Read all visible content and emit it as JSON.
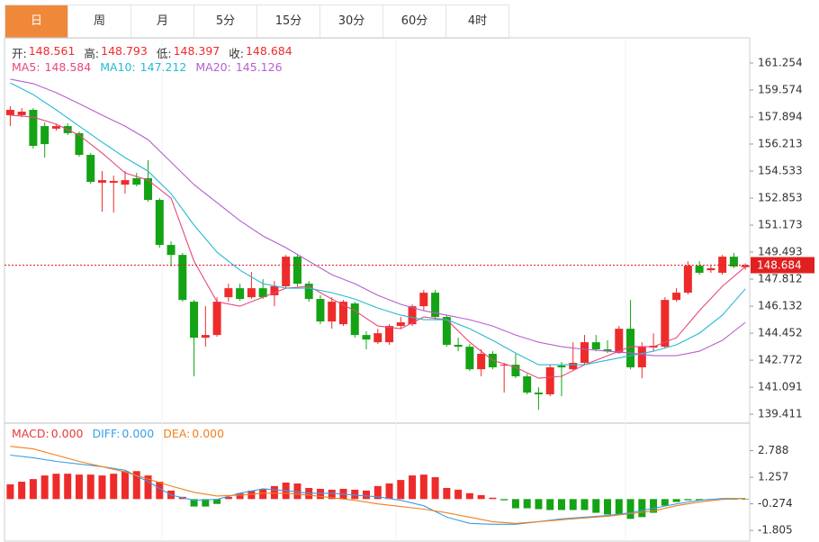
{
  "tabs": {
    "items": [
      "日",
      "周",
      "月",
      "5分",
      "15分",
      "30分",
      "60分",
      "4时"
    ],
    "active": 0,
    "active_color": "#f0883a"
  },
  "chart_data": [
    {
      "type": "candlestick",
      "up_color": "#ee2b2b",
      "down_color": "#14a314",
      "price_line_color": "#e02020",
      "ylim": [
        138.97,
        162.82
      ],
      "yticks": [
        161.254,
        159.574,
        157.894,
        156.213,
        154.533,
        152.853,
        151.173,
        149.493,
        147.812,
        146.132,
        144.452,
        142.772,
        141.091,
        139.411
      ],
      "ohlc_legend": [
        {
          "label": "开:",
          "value": 148.561
        },
        {
          "label": "高:",
          "value": 148.793
        },
        {
          "label": "低:",
          "value": 148.397
        },
        {
          "label": "收:",
          "value": 148.684
        }
      ],
      "open": [
        158.01,
        158.01,
        158.34,
        157.33,
        157.17,
        157.33,
        156.89,
        155.54,
        153.81,
        153.81,
        153.69,
        154.09,
        154.09,
        152.74,
        149.94,
        149.32,
        146.41,
        144.17,
        144.34,
        146.69,
        147.25,
        146.69,
        147.25,
        146.81,
        147.37,
        149.21,
        147.53,
        146.58,
        145.18,
        145.01,
        146.3,
        144.34,
        143.89,
        143.89,
        144.9,
        145.01,
        146.13,
        146.97,
        145.46,
        143.73,
        143.61,
        142.21,
        143.17,
        142.44,
        142.49,
        141.77,
        140.76,
        140.65,
        142.44,
        142.21,
        142.61,
        143.89,
        143.45,
        143.22,
        144.73,
        142.33,
        143.56,
        143.61,
        146.52,
        146.97,
        148.65,
        148.37,
        148.21,
        149.21,
        148.561
      ],
      "high": [
        158.57,
        158.45,
        158.45,
        157.56,
        157.45,
        157.5,
        157.0,
        155.65,
        154.53,
        154.25,
        154.53,
        154.42,
        155.21,
        152.85,
        150.17,
        149.44,
        146.52,
        146.13,
        146.69,
        147.53,
        147.53,
        148.26,
        147.81,
        147.7,
        149.32,
        149.32,
        147.7,
        146.81,
        146.69,
        146.52,
        146.41,
        144.57,
        144.73,
        145.01,
        145.46,
        146.25,
        147.14,
        147.14,
        145.57,
        144.17,
        143.78,
        143.45,
        143.33,
        142.61,
        143.17,
        141.93,
        141.09,
        142.49,
        142.66,
        143.89,
        144.34,
        144.34,
        144.01,
        144.9,
        146.52,
        143.89,
        144.45,
        146.69,
        147.25,
        148.93,
        148.93,
        148.65,
        149.32,
        149.44,
        148.793
      ],
      "low": [
        157.33,
        157.89,
        155.93,
        155.37,
        157.05,
        156.77,
        155.43,
        153.75,
        152.01,
        151.96,
        153.13,
        153.58,
        152.63,
        149.77,
        148.6,
        146.41,
        141.77,
        143.61,
        144.23,
        146.41,
        146.47,
        146.58,
        146.58,
        146.13,
        147.25,
        147.37,
        146.41,
        145.01,
        144.73,
        144.9,
        144.17,
        143.45,
        143.78,
        143.73,
        144.73,
        144.9,
        145.85,
        145.29,
        143.61,
        143.33,
        142.1,
        141.77,
        142.21,
        140.76,
        141.65,
        140.65,
        139.69,
        140.53,
        140.53,
        142.1,
        142.49,
        143.33,
        143.22,
        143.17,
        142.21,
        141.65,
        143.33,
        143.5,
        146.41,
        146.86,
        148.09,
        148.21,
        148.09,
        148.49,
        148.397
      ],
      "close": [
        158.34,
        158.23,
        156.1,
        156.21,
        157.33,
        156.89,
        155.54,
        153.86,
        153.97,
        153.92,
        153.97,
        153.69,
        152.74,
        149.94,
        149.32,
        146.52,
        144.17,
        144.34,
        146.41,
        147.25,
        146.58,
        147.25,
        146.69,
        147.37,
        149.21,
        147.53,
        146.58,
        145.18,
        146.41,
        146.41,
        144.34,
        144.06,
        144.45,
        144.9,
        145.13,
        146.13,
        146.97,
        145.46,
        143.73,
        143.61,
        142.21,
        143.17,
        142.33,
        142.49,
        141.77,
        140.76,
        140.65,
        142.33,
        142.33,
        142.61,
        143.89,
        143.45,
        143.33,
        144.73,
        142.33,
        143.61,
        143.67,
        146.52,
        146.97,
        148.65,
        148.21,
        148.49,
        149.21,
        148.6,
        148.684
      ],
      "series": [
        {
          "name": "MA5:",
          "color": "#e8477a",
          "last_value": 148.584,
          "x": [
            0,
            2,
            4,
            6,
            8,
            10,
            12,
            14,
            16,
            18,
            20,
            22,
            24,
            26,
            28,
            30,
            32,
            34,
            36,
            38,
            40,
            42,
            44,
            46,
            48,
            50,
            52,
            54,
            56,
            58,
            60,
            62,
            64
          ],
          "values": [
            158.01,
            157.89,
            157.45,
            156.77,
            155.65,
            154.42,
            153.97,
            152.85,
            148.93,
            146.41,
            146.13,
            146.69,
            147.25,
            147.37,
            146.58,
            145.85,
            144.9,
            144.73,
            145.46,
            145.29,
            143.89,
            142.77,
            142.33,
            141.65,
            141.77,
            142.49,
            143.05,
            143.61,
            143.61,
            144.17,
            145.85,
            147.37,
            148.584
          ]
        },
        {
          "name": "MA10:",
          "color": "#27b9d4",
          "last_value": 147.212,
          "x": [
            0,
            2,
            4,
            6,
            8,
            10,
            12,
            14,
            16,
            18,
            20,
            22,
            24,
            26,
            28,
            30,
            32,
            34,
            36,
            38,
            40,
            42,
            44,
            46,
            48,
            50,
            52,
            54,
            56,
            58,
            60,
            62,
            64
          ],
          "values": [
            160.02,
            159.29,
            158.34,
            157.33,
            156.33,
            155.37,
            154.53,
            153.13,
            151.17,
            149.49,
            148.37,
            147.53,
            147.25,
            147.25,
            146.97,
            146.58,
            146.02,
            145.57,
            145.29,
            145.29,
            144.73,
            144.01,
            143.22,
            142.49,
            142.49,
            142.49,
            142.77,
            143.05,
            143.33,
            143.73,
            144.45,
            145.57,
            147.212
          ]
        },
        {
          "name": "MA20:",
          "color": "#b55fcf",
          "last_value": 145.126,
          "x": [
            0,
            2,
            4,
            6,
            8,
            10,
            12,
            14,
            16,
            18,
            20,
            22,
            24,
            26,
            28,
            30,
            32,
            34,
            36,
            38,
            40,
            42,
            44,
            46,
            48,
            50,
            52,
            54,
            56,
            58,
            60,
            62,
            64
          ],
          "values": [
            160.25,
            159.97,
            159.41,
            158.73,
            158.01,
            157.33,
            156.49,
            155.09,
            153.69,
            152.57,
            151.45,
            150.5,
            149.77,
            148.93,
            148.09,
            147.53,
            146.81,
            146.25,
            145.85,
            145.57,
            145.29,
            144.9,
            144.34,
            143.89,
            143.61,
            143.45,
            143.33,
            143.22,
            143.05,
            143.05,
            143.33,
            144.01,
            145.126
          ]
        }
      ]
    },
    {
      "type": "macd",
      "ylim": [
        -2.42,
        4.32
      ],
      "yticks": [
        2.788,
        1.257,
        -0.274,
        -1.805
      ],
      "histogram": {
        "name": "MACD:",
        "color": "#e33b3b",
        "up_color": "#ee2b2b",
        "down_color": "#14a314",
        "last_value": 0,
        "last_value_label": "0.000",
        "values": [
          0.85,
          1.0,
          1.15,
          1.36,
          1.46,
          1.46,
          1.41,
          1.41,
          1.36,
          1.46,
          1.61,
          1.61,
          1.36,
          1.0,
          0.49,
          0.13,
          -0.43,
          -0.43,
          -0.28,
          0.13,
          0.34,
          0.49,
          0.59,
          0.75,
          0.95,
          0.9,
          0.64,
          0.59,
          0.54,
          0.59,
          0.54,
          0.49,
          0.75,
          0.9,
          1.1,
          1.36,
          1.41,
          1.26,
          0.64,
          0.54,
          0.34,
          0.23,
          0.08,
          -0.07,
          -0.53,
          -0.53,
          -0.58,
          -0.63,
          -0.63,
          -0.63,
          -0.63,
          -0.79,
          -0.89,
          -0.89,
          -1.14,
          -1.04,
          -0.79,
          -0.38,
          -0.17,
          -0.07,
          -0.07,
          -0.02,
          0.03,
          -0.02,
          -0.02
        ]
      },
      "series": [
        {
          "name": "DIFF:",
          "color": "#3a9ee8",
          "last_value": 0,
          "last_value_label": "0.000",
          "x": [
            0,
            2,
            4,
            6,
            8,
            10,
            12,
            14,
            16,
            18,
            20,
            22,
            24,
            26,
            28,
            30,
            32,
            34,
            36,
            38,
            40,
            42,
            44,
            46,
            48,
            50,
            52,
            54,
            56,
            58,
            60,
            62,
            64
          ],
          "values": [
            2.53,
            2.38,
            2.17,
            2.02,
            1.87,
            1.66,
            1.0,
            0.23,
            -0.07,
            -0.02,
            0.34,
            0.59,
            0.49,
            0.34,
            0.34,
            0.23,
            0.13,
            -0.07,
            -0.38,
            -1.04,
            -1.4,
            -1.45,
            -1.45,
            -1.3,
            -1.14,
            -1.04,
            -0.94,
            -0.79,
            -0.53,
            -0.28,
            -0.07,
            0.03,
            0.03
          ]
        },
        {
          "name": "DEA:",
          "color": "#f0801e",
          "last_value": 0,
          "last_value_label": "0.000",
          "x": [
            0,
            2,
            4,
            6,
            8,
            10,
            12,
            14,
            16,
            18,
            20,
            22,
            24,
            26,
            28,
            30,
            32,
            34,
            36,
            38,
            40,
            42,
            44,
            46,
            48,
            50,
            52,
            54,
            56,
            58,
            60,
            62,
            64
          ],
          "values": [
            3.04,
            2.89,
            2.53,
            2.17,
            1.87,
            1.56,
            1.15,
            0.75,
            0.39,
            0.18,
            0.23,
            0.34,
            0.34,
            0.23,
            0.08,
            -0.07,
            -0.28,
            -0.43,
            -0.58,
            -0.79,
            -1.04,
            -1.3,
            -1.4,
            -1.3,
            -1.19,
            -1.09,
            -0.99,
            -0.84,
            -0.68,
            -0.38,
            -0.17,
            -0.02,
            0.03
          ]
        }
      ]
    }
  ]
}
